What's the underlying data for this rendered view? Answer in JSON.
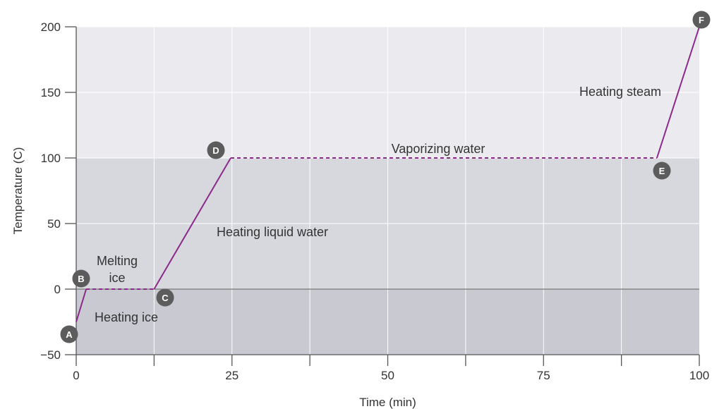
{
  "chart_data": {
    "type": "line",
    "xlabel": "Time (min)",
    "ylabel": "Temperature (C)",
    "xlim": [
      0,
      100
    ],
    "ylim": [
      -50,
      200
    ],
    "x_ticks": [
      0,
      25,
      50,
      75,
      100
    ],
    "y_ticks": [
      -50,
      0,
      50,
      100,
      150,
      200
    ],
    "grid": true,
    "series": [
      {
        "values": [
          {
            "x": 0,
            "y": -25
          },
          {
            "x": 1.6,
            "y": 0
          },
          {
            "x": 12.5,
            "y": 0
          },
          {
            "x": 24.8,
            "y": 100
          },
          {
            "x": 93.2,
            "y": 100
          },
          {
            "x": 100,
            "y": 200
          }
        ],
        "segment_styles": [
          "solid",
          "dashed",
          "solid",
          "dashed",
          "solid"
        ],
        "color": "#8b2a8b"
      }
    ],
    "points": [
      {
        "label": "A",
        "x": 0,
        "y": -25
      },
      {
        "label": "B",
        "x": 1.6,
        "y": 0
      },
      {
        "label": "C",
        "x": 12.5,
        "y": 0
      },
      {
        "label": "D",
        "x": 24.8,
        "y": 100
      },
      {
        "label": "E",
        "x": 93.2,
        "y": 100
      },
      {
        "label": "F",
        "x": 100,
        "y": 200
      }
    ],
    "annotations": [
      {
        "text": [
          "Heating ice"
        ]
      },
      {
        "text": [
          "Melting",
          "ice"
        ]
      },
      {
        "text": [
          "Heating liquid water"
        ]
      },
      {
        "text": [
          "Vaporizing water"
        ]
      },
      {
        "text": [
          "Heating steam"
        ]
      }
    ],
    "bands": [
      {
        "from": 100,
        "to": 200,
        "color": "#ebebef"
      },
      {
        "from": 0,
        "to": 100,
        "color": "#d7d8de"
      },
      {
        "from": -50,
        "to": 0,
        "color": "#c8c9d1"
      }
    ],
    "colors": {
      "line": "#8b2a8b",
      "marker": "#5c5c5c",
      "grid": "#ffffff",
      "axis": "#555555",
      "zero_line": "#777777"
    }
  }
}
